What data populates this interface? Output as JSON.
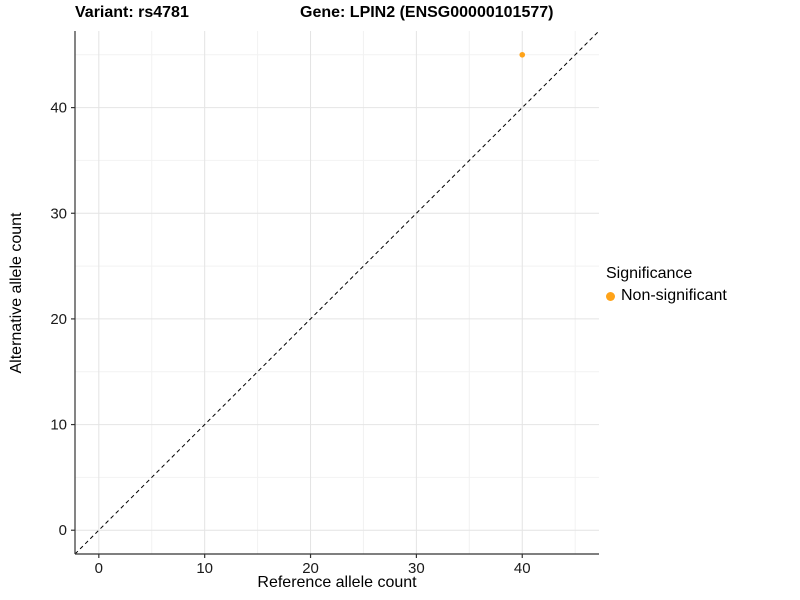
{
  "titles": {
    "variant": "Variant: rs4781",
    "gene": "Gene: LPIN2 (ENSG00000101577)"
  },
  "chart_data": {
    "type": "scatter",
    "xlabel": "Reference allele count",
    "ylabel": "Alternative allele count",
    "xlim": [
      -2.25,
      47.25
    ],
    "ylim": [
      -2.25,
      47.25
    ],
    "x_ticks": [
      0,
      10,
      20,
      30,
      40
    ],
    "y_ticks": [
      0,
      10,
      20,
      30,
      40
    ],
    "x_minor_ticks": [
      5,
      15,
      25,
      35,
      45
    ],
    "y_minor_ticks": [
      5,
      15,
      25,
      35,
      45
    ],
    "grid": true,
    "series": [
      {
        "name": "Non-significant",
        "color": "#FFA319",
        "points": [
          {
            "x": 40,
            "y": 45
          }
        ]
      }
    ],
    "reference_line": {
      "type": "identity",
      "slope": 1,
      "intercept": 0,
      "style": "dashed",
      "color": "#000000"
    },
    "legend": {
      "title": "Significance",
      "position": "right",
      "entries": [
        {
          "label": "Non-significant",
          "color": "#FFA319"
        }
      ]
    }
  },
  "colors": {
    "background": "#FFFFFF",
    "grid_major": "#E4E4E4",
    "grid_minor": "#F2F2F2",
    "axis_line": "#333333",
    "tick_mark": "#333333",
    "tick_label": "#1A1A1A",
    "point": "#FFA319",
    "identity_line": "#000000"
  }
}
